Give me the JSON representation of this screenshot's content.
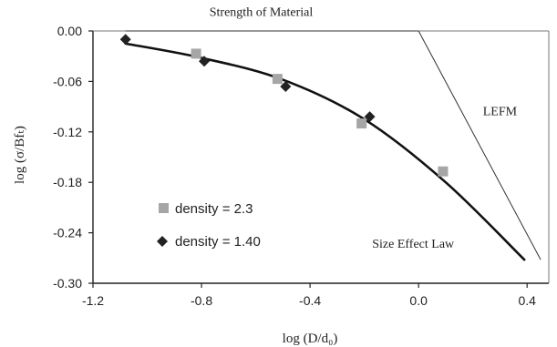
{
  "chart_data": {
    "type": "scatter",
    "title": "",
    "xlabel": "log (D/d₀)",
    "ylabel": "log (σ/Bfₜ)",
    "xlim": [
      -1.2,
      0.48
    ],
    "ylim": [
      -0.3,
      0.0
    ],
    "x_ticks": [
      "-1.2",
      "-0.8",
      "-0.4",
      "0.0",
      "0.4"
    ],
    "x_tick_values": [
      -1.2,
      -0.8,
      -0.4,
      0.0,
      0.4
    ],
    "y_ticks": [
      "0.00",
      "-0.06",
      "-0.12",
      "-0.18",
      "-0.24",
      "-0.30"
    ],
    "y_tick_values": [
      0.0,
      -0.06,
      -0.12,
      -0.18,
      -0.24,
      -0.3
    ],
    "grid": false,
    "legend_position": "lower-left",
    "series": [
      {
        "name": "density = 2.3",
        "marker": "square",
        "color": "#a6a6a6",
        "points": [
          {
            "x": -0.82,
            "y": -0.027
          },
          {
            "x": -0.52,
            "y": -0.057
          },
          {
            "x": -0.21,
            "y": -0.11
          },
          {
            "x": 0.09,
            "y": -0.167
          }
        ]
      },
      {
        "name": "density = 1.40",
        "marker": "diamond",
        "color": "#222222",
        "points": [
          {
            "x": -1.08,
            "y": -0.01
          },
          {
            "x": -0.79,
            "y": -0.036
          },
          {
            "x": -0.49,
            "y": -0.066
          },
          {
            "x": -0.18,
            "y": -0.102
          }
        ]
      }
    ],
    "curves": [
      {
        "name": "Size Effect Law",
        "color": "#111111",
        "points": [
          {
            "x": -1.08,
            "y": -0.015
          },
          {
            "x": -0.8,
            "y": -0.032
          },
          {
            "x": -0.5,
            "y": -0.058
          },
          {
            "x": -0.2,
            "y": -0.105
          },
          {
            "x": 0.1,
            "y": -0.18
          },
          {
            "x": 0.39,
            "y": -0.272
          }
        ]
      },
      {
        "name": "Strength of Material",
        "color": "#333333",
        "points": [
          {
            "x": -1.08,
            "y": 0.0
          },
          {
            "x": 0.0,
            "y": 0.0
          }
        ]
      },
      {
        "name": "LEFM",
        "color": "#333333",
        "points": [
          {
            "x": 0.0,
            "y": 0.0
          },
          {
            "x": 0.45,
            "y": -0.272
          }
        ]
      }
    ],
    "annotations": [
      {
        "text": "Strength of Material",
        "x": -0.58,
        "y": 0.018
      },
      {
        "text": "LEFM",
        "x": 0.3,
        "y": -0.1
      },
      {
        "text": "Size Effect Law",
        "x": -0.02,
        "y": -0.258
      }
    ],
    "colors": {
      "axis": "#222222",
      "square_marker": "#a6a6a6",
      "diamond_marker": "#222222",
      "curve": "#111111",
      "reference_lines": "#333333"
    }
  }
}
